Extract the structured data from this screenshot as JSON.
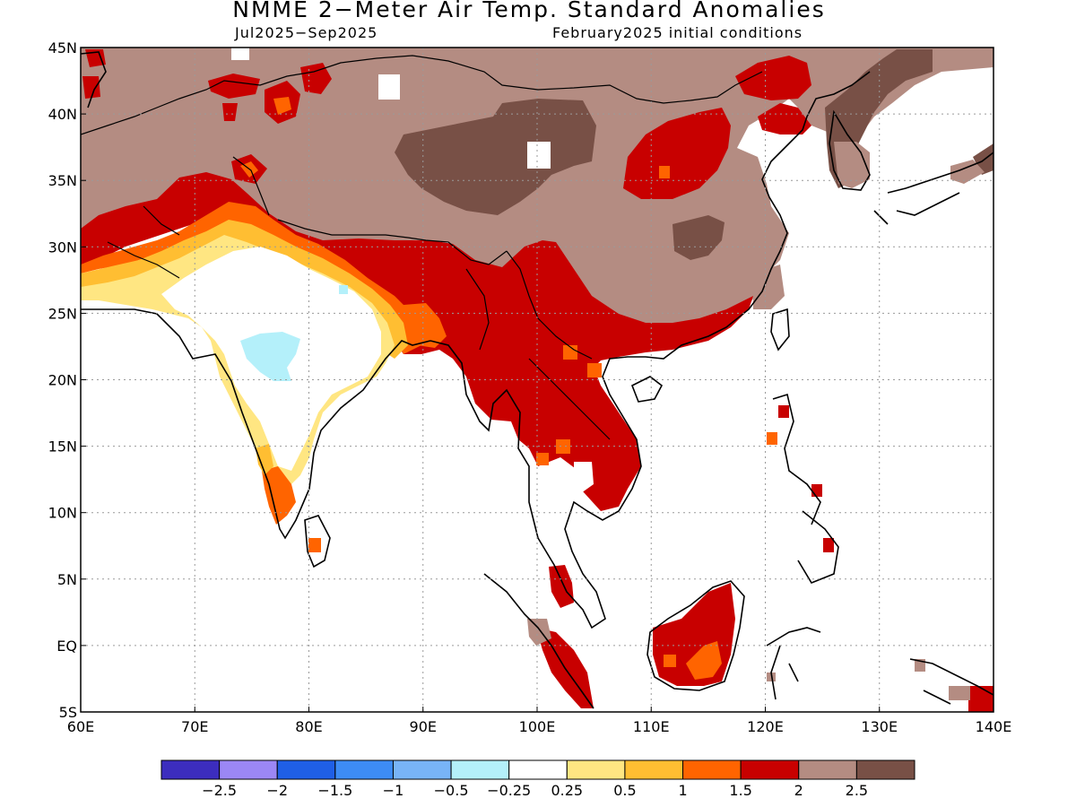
{
  "title": "NMME 2−Meter Air Temp. Standard Anomalies",
  "subtitle_left": "Jul2025−Sep2025",
  "subtitle_right": "February2025 initial conditions",
  "map": {
    "lon_range": [
      60,
      140
    ],
    "lat_range": [
      -5,
      45
    ],
    "lon_ticks": [
      "60E",
      "70E",
      "80E",
      "90E",
      "100E",
      "110E",
      "120E",
      "130E",
      "140E"
    ],
    "lat_ticks": [
      "45N",
      "40N",
      "35N",
      "30N",
      "25N",
      "20N",
      "15N",
      "10N",
      "5N",
      "EQ",
      "5S"
    ],
    "grid": "dotted"
  },
  "colorbar": {
    "colors": [
      "#3c2dbe",
      "#9b87f5",
      "#1f5fe6",
      "#3d8cf5",
      "#78b4f7",
      "#b4f0fa",
      "#ffffff",
      "#ffe682",
      "#ffbe32",
      "#ff6400",
      "#c80000",
      "#b48c82",
      "#785046"
    ],
    "labels": [
      "−2.5",
      "−2",
      "−1.5",
      "−1",
      "−0.5",
      "−0.25",
      "0.25",
      "0.5",
      "1",
      "1.5",
      "2",
      "2.5"
    ]
  },
  "regions": {
    "brown_high": "#b48c82",
    "dark_brown": "#785046",
    "red": "#c80000",
    "orange": "#ff6400",
    "light_orange": "#ffbe32",
    "yellow": "#ffe682",
    "cyan": "#b4f0fa"
  }
}
